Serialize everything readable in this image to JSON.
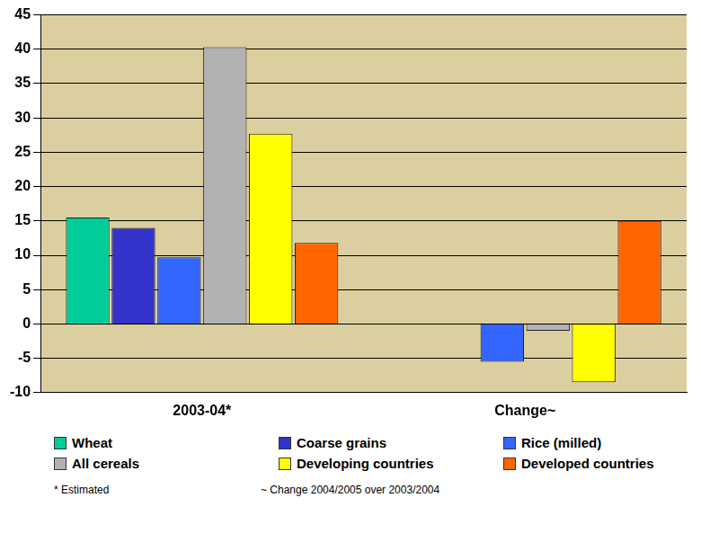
{
  "chart_data": {
    "type": "bar",
    "categories": [
      "2003-04*",
      "Change~"
    ],
    "series": [
      {
        "name": "Wheat",
        "color": "#00cc99",
        "values": [
          15.5,
          0
        ]
      },
      {
        "name": "Coarse grains",
        "color": "#3333cc",
        "values": [
          14,
          0
        ]
      },
      {
        "name": "Rice (milled)",
        "color": "#3366ff",
        "values": [
          9.7,
          -5.5
        ]
      },
      {
        "name": "All cereals",
        "color": "#b2b2b2",
        "values": [
          40.3,
          -1
        ]
      },
      {
        "name": "Developing countries",
        "color": "#ffff00",
        "values": [
          27.7,
          -8.5
        ]
      },
      {
        "name": "Developed countries",
        "color": "#ff6600",
        "values": [
          11.8,
          15
        ]
      }
    ],
    "ylim": [
      -10,
      45
    ],
    "yticks": [
      -10,
      -5,
      0,
      5,
      10,
      15,
      20,
      25,
      30,
      35,
      40,
      45
    ],
    "grid": true,
    "legend": "bottom",
    "annotations": [
      "* Estimated",
      "~ Change 2004/2005 over 2003/2004"
    ]
  }
}
